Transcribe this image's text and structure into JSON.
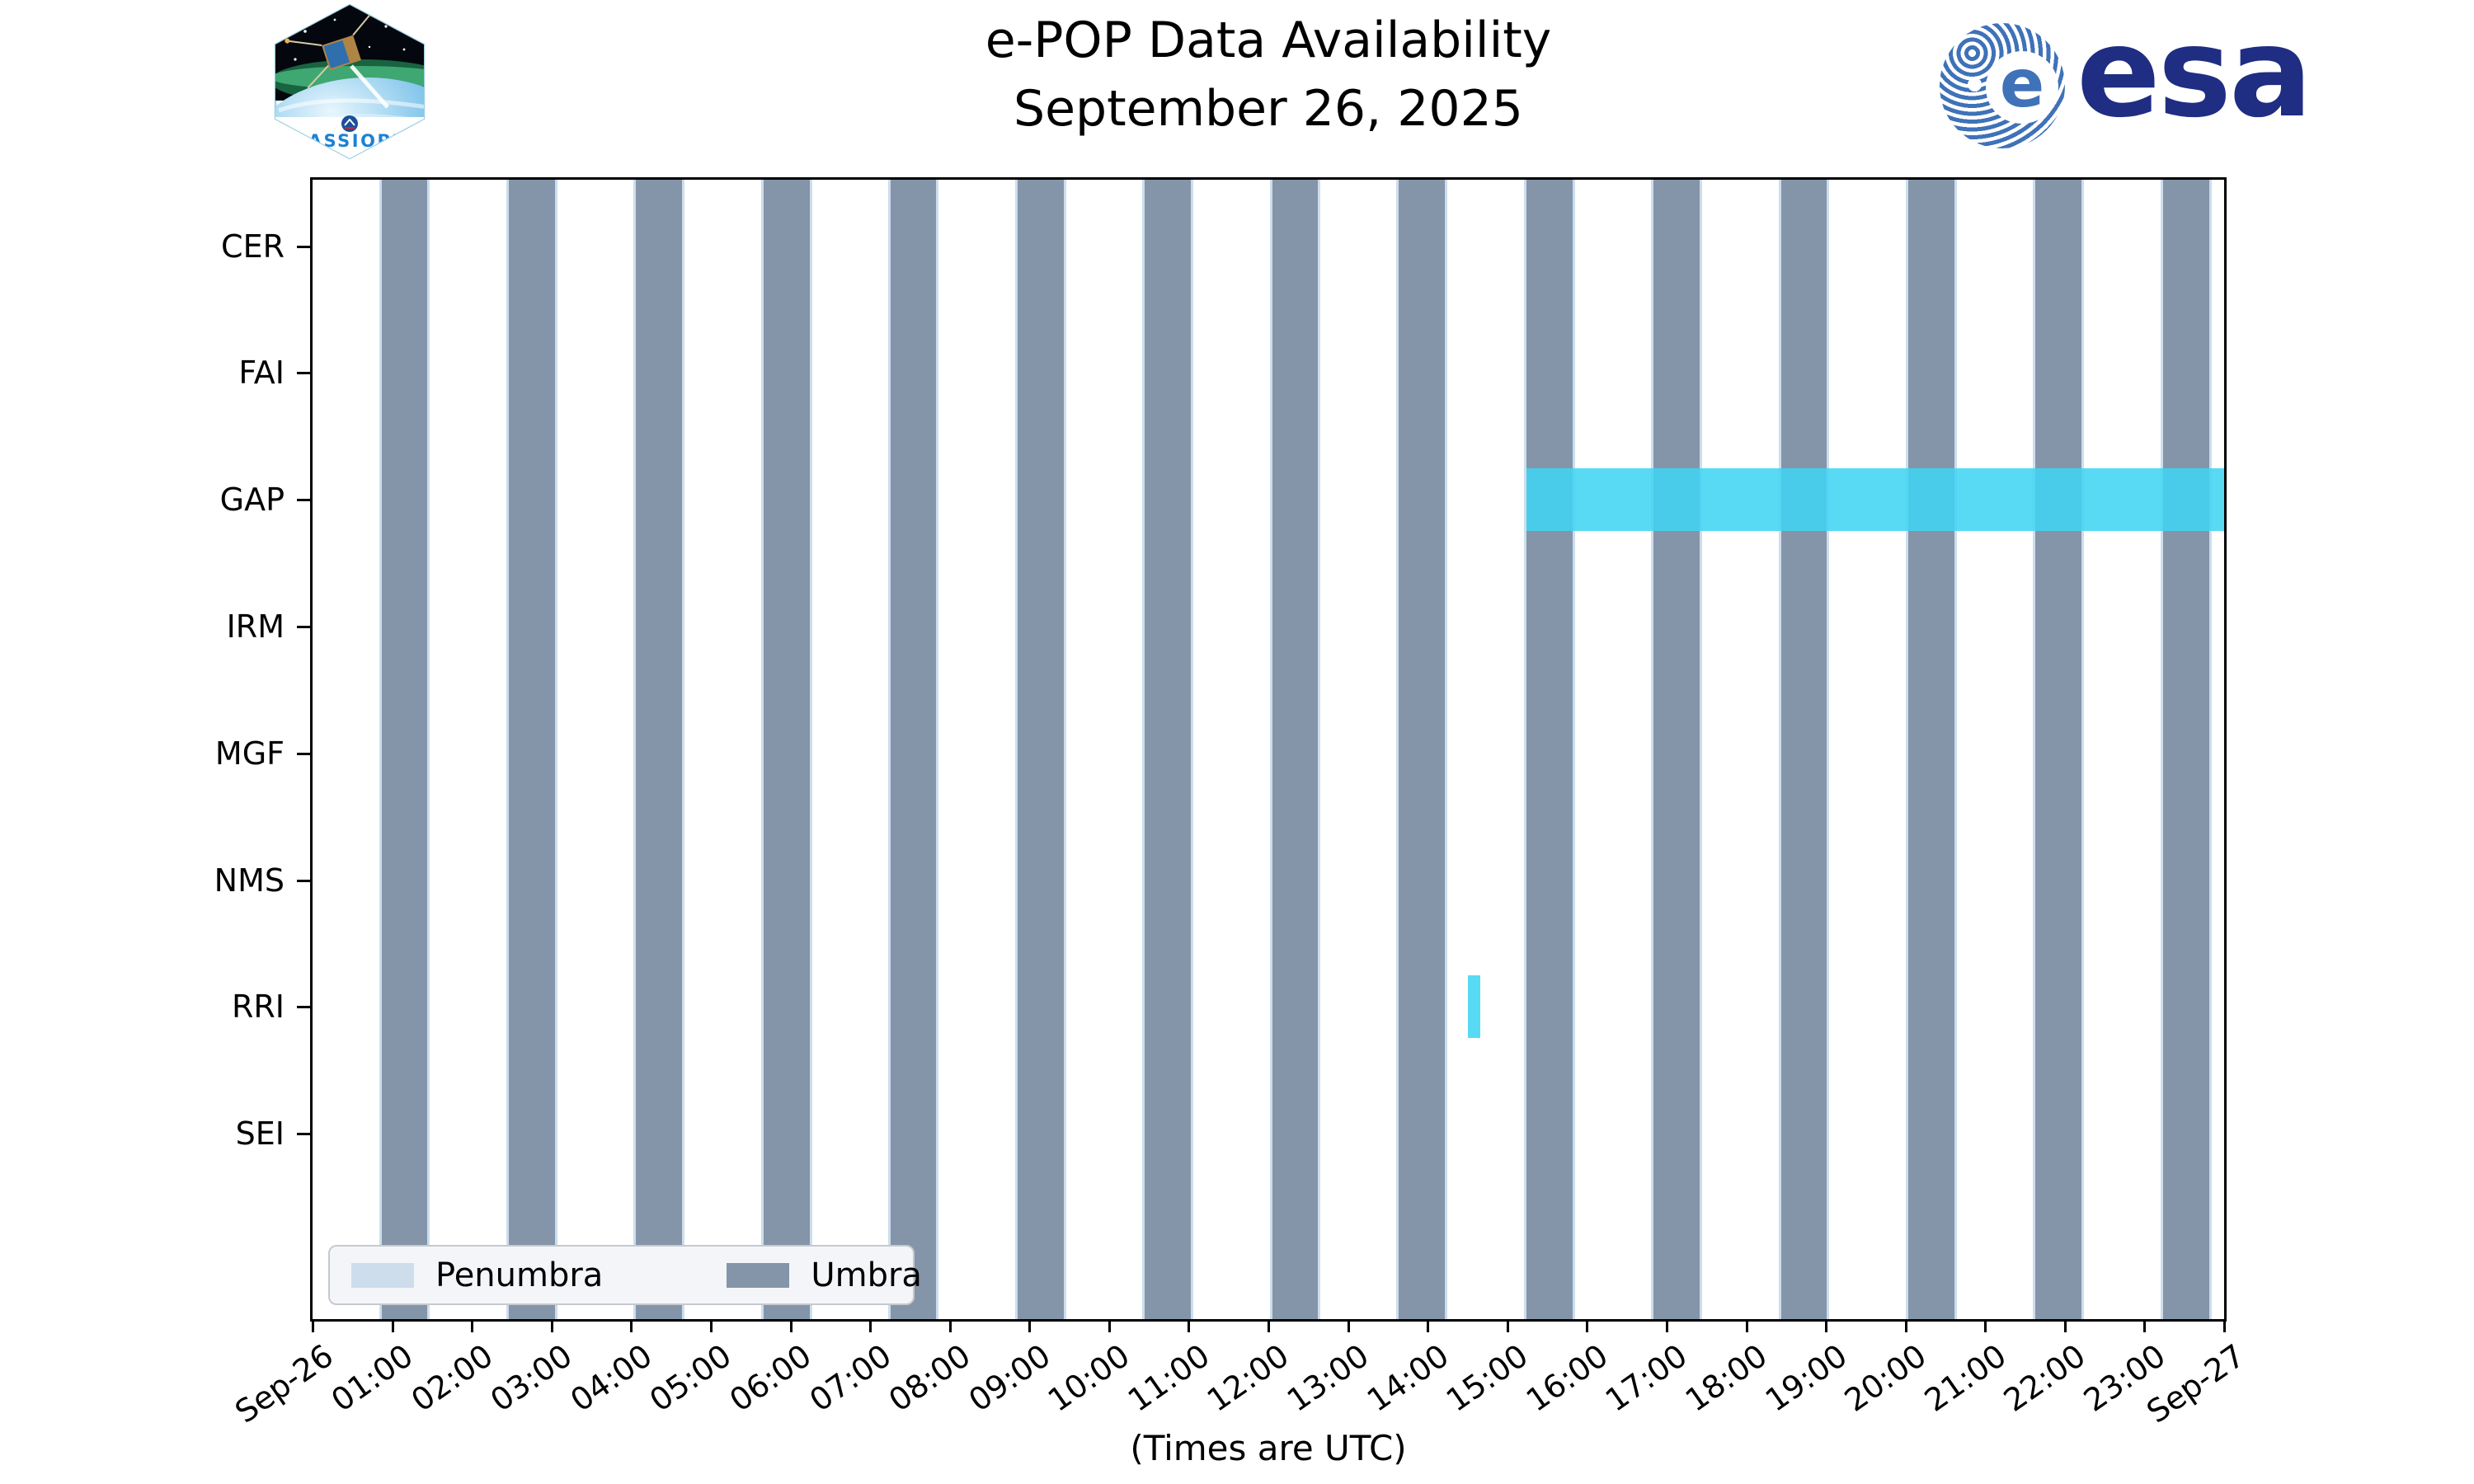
{
  "header": {
    "cassiope_text": "CASSIOPE",
    "esa_text": "esa"
  },
  "chart_data": {
    "type": "timeline",
    "title": "e-POP Data Availability",
    "subtitle": "September 26, 2025",
    "xlabel": "(Times are UTC)",
    "x_range_hours": [
      0,
      24
    ],
    "x_tick_labels": [
      "Sep-26",
      "01:00",
      "02:00",
      "03:00",
      "04:00",
      "05:00",
      "06:00",
      "07:00",
      "08:00",
      "09:00",
      "10:00",
      "11:00",
      "12:00",
      "13:00",
      "14:00",
      "15:00",
      "16:00",
      "17:00",
      "18:00",
      "19:00",
      "20:00",
      "21:00",
      "22:00",
      "23:00",
      "Sep-27"
    ],
    "instruments": [
      "CER",
      "FAI",
      "GAP",
      "IRM",
      "MGF",
      "NMS",
      "RRI",
      "SEI"
    ],
    "umbra_intervals": [
      {
        "start": "00:52",
        "end": "01:27",
        "start_h": 0.87,
        "end_h": 1.44
      },
      {
        "start": "02:28",
        "end": "03:02",
        "start_h": 2.46,
        "end_h": 3.04
      },
      {
        "start": "04:04",
        "end": "04:38",
        "start_h": 4.06,
        "end_h": 4.64
      },
      {
        "start": "05:39",
        "end": "06:14",
        "start_h": 5.66,
        "end_h": 6.24
      },
      {
        "start": "07:15",
        "end": "07:50",
        "start_h": 7.26,
        "end_h": 7.83
      },
      {
        "start": "08:51",
        "end": "09:26",
        "start_h": 8.85,
        "end_h": 9.43
      },
      {
        "start": "10:27",
        "end": "11:02",
        "start_h": 10.45,
        "end_h": 11.03
      },
      {
        "start": "12:03",
        "end": "12:37",
        "start_h": 12.05,
        "end_h": 12.62
      },
      {
        "start": "13:39",
        "end": "14:13",
        "start_h": 13.64,
        "end_h": 14.22
      },
      {
        "start": "15:14",
        "end": "15:49",
        "start_h": 15.24,
        "end_h": 15.82
      },
      {
        "start": "16:50",
        "end": "17:25",
        "start_h": 16.84,
        "end_h": 17.42
      },
      {
        "start": "18:26",
        "end": "19:01",
        "start_h": 18.44,
        "end_h": 19.01
      },
      {
        "start": "20:02",
        "end": "20:37",
        "start_h": 20.03,
        "end_h": 20.61
      },
      {
        "start": "21:38",
        "end": "22:13",
        "start_h": 21.63,
        "end_h": 22.21
      },
      {
        "start": "23:14",
        "end": "23:49",
        "start_h": 23.23,
        "end_h": 23.81
      }
    ],
    "availability": [
      {
        "instrument": "GAP",
        "start": "15:14",
        "end": "24:00",
        "start_h": 15.24,
        "end_h": 24.0
      },
      {
        "instrument": "RRI",
        "start": "14:31",
        "end": "14:40",
        "start_h": 14.51,
        "end_h": 14.66
      }
    ],
    "legend": [
      {
        "label": "Penumbra",
        "color": "#cdddec"
      },
      {
        "label": "Umbra",
        "color": "#8495a9"
      }
    ],
    "colors": {
      "umbra": "#8495a9",
      "penumbra": "#cdddec",
      "availability": "#3fd4f2",
      "legend_background": "#f3f5f8",
      "esa_navy": "#1f2d82",
      "esa_stripe_blue": "#3f72b8",
      "cassiope_blue": "#1b82d4"
    },
    "layout": {
      "grid": false,
      "legend_position": "lower left",
      "x_tick_rotation_deg": 35
    }
  }
}
